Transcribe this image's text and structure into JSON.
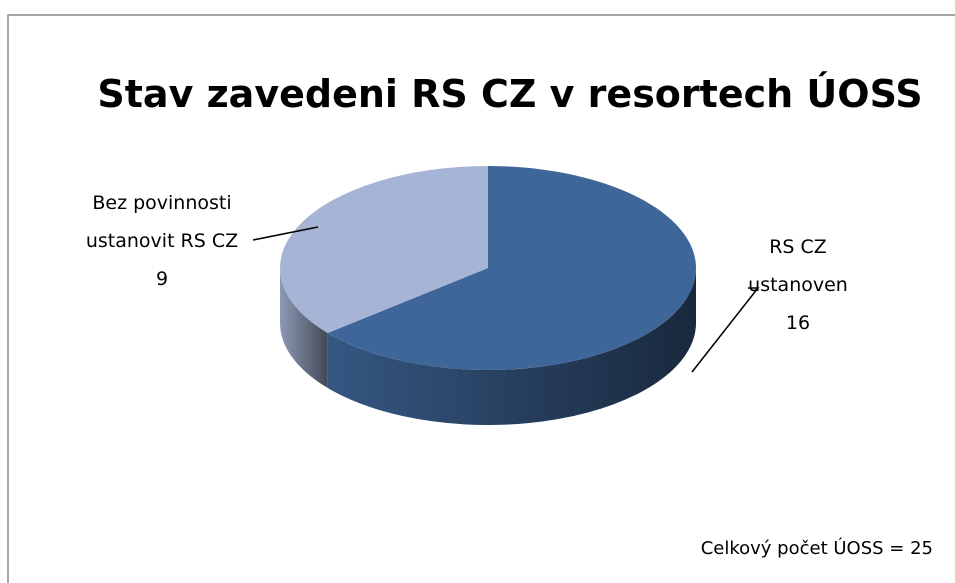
{
  "chart_data": {
    "type": "pie",
    "title": "Stav zavedeni RS CZ v resortech ÚOSS",
    "categories": [
      "RS CZ ustanoven",
      "Bez povinnosti ustanovit RS CZ"
    ],
    "values": [
      16,
      9
    ],
    "colors": [
      "#3e6699",
      "#a6b5d6"
    ],
    "annotation": "Celkový počet ÚOSS = 25"
  }
}
